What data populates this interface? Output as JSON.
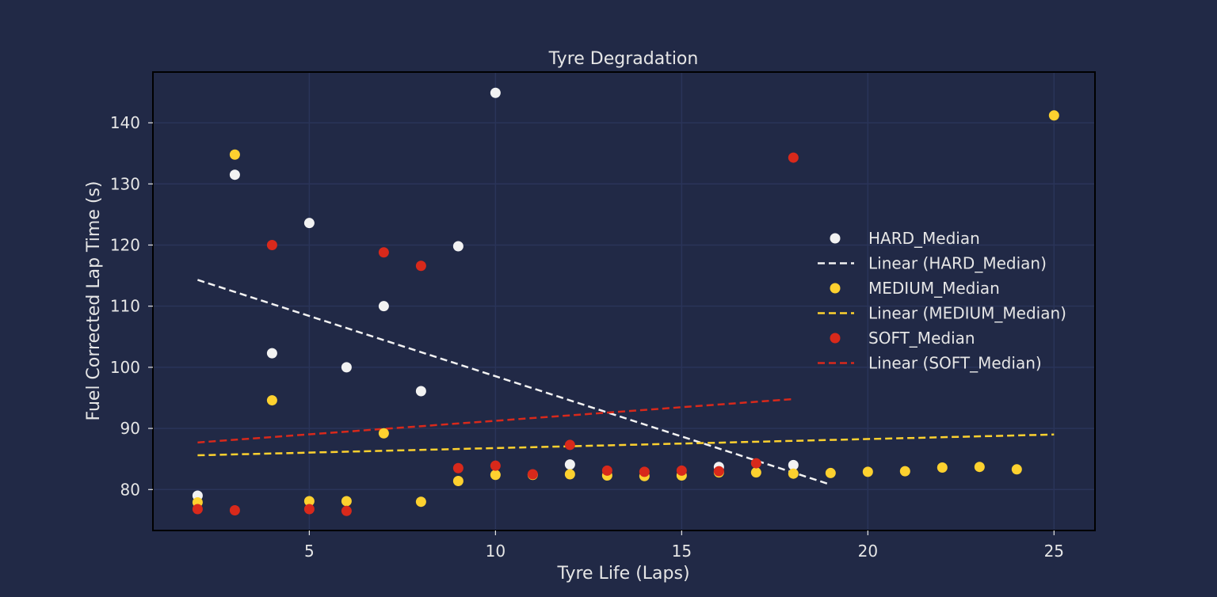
{
  "chart_data": {
    "type": "scatter",
    "title": "Tyre Degradation",
    "xlabel": "Tyre Life (Laps)",
    "ylabel": "Fuel Corrected Lap Time (s)",
    "xlim": [
      0.8,
      26.1
    ],
    "ylim": [
      73.3,
      148.3
    ],
    "xticks": [
      5,
      10,
      15,
      20,
      25
    ],
    "yticks": [
      80,
      90,
      100,
      110,
      120,
      130,
      140
    ],
    "grid": true,
    "legend_position": "center-right",
    "colors": {
      "background": "#212946",
      "grid": "#2A3459",
      "text": "#e6e6e6",
      "hard": "#F2F2F2",
      "medium": "#FDD12F",
      "soft": "#D8291B"
    },
    "series": [
      {
        "name": "HARD_Median",
        "kind": "scatter",
        "color": "#F2F2F2",
        "points": [
          [
            2,
            79
          ],
          [
            3,
            131.5
          ],
          [
            4,
            102.3
          ],
          [
            5,
            123.6
          ],
          [
            6,
            100
          ],
          [
            7,
            110
          ],
          [
            8,
            96.1
          ],
          [
            9,
            119.8
          ],
          [
            10,
            144.9
          ],
          [
            12,
            84.1
          ],
          [
            16,
            83.7
          ],
          [
            18,
            84
          ]
        ]
      },
      {
        "name": "Linear (HARD_Median)",
        "kind": "line",
        "color": "#F2F2F2",
        "points": [
          [
            2,
            114.3
          ],
          [
            19,
            80.8
          ]
        ]
      },
      {
        "name": "MEDIUM_Median",
        "kind": "scatter",
        "color": "#FDD12F",
        "points": [
          [
            2,
            77.9
          ],
          [
            3,
            134.8
          ],
          [
            4,
            94.6
          ],
          [
            5,
            78.1
          ],
          [
            6,
            78.1
          ],
          [
            7,
            89.2
          ],
          [
            8,
            78
          ],
          [
            9,
            81.4
          ],
          [
            10,
            82.4
          ],
          [
            11,
            82.4
          ],
          [
            12,
            82.5
          ],
          [
            13,
            82.3
          ],
          [
            14,
            82.2
          ],
          [
            15,
            82.3
          ],
          [
            16,
            82.8
          ],
          [
            17,
            82.8
          ],
          [
            18,
            82.6
          ],
          [
            19,
            82.7
          ],
          [
            20,
            82.9
          ],
          [
            21,
            83
          ],
          [
            22,
            83.6
          ],
          [
            23,
            83.7
          ],
          [
            24,
            83.3
          ],
          [
            25,
            141.2
          ]
        ]
      },
      {
        "name": "Linear (MEDIUM_Median)",
        "kind": "line",
        "color": "#FDD12F",
        "points": [
          [
            2,
            85.6
          ],
          [
            25,
            89
          ]
        ]
      },
      {
        "name": "SOFT_Median",
        "kind": "scatter",
        "color": "#D8291B",
        "points": [
          [
            2,
            76.8
          ],
          [
            3,
            76.6
          ],
          [
            4,
            120
          ],
          [
            5,
            76.8
          ],
          [
            6,
            76.5
          ],
          [
            7,
            118.8
          ],
          [
            8,
            116.6
          ],
          [
            9,
            83.5
          ],
          [
            10,
            83.9
          ],
          [
            11,
            82.5
          ],
          [
            12,
            87.3
          ],
          [
            13,
            83.1
          ],
          [
            14,
            82.9
          ],
          [
            15,
            83.1
          ],
          [
            16,
            83
          ],
          [
            17,
            84.3
          ],
          [
            18,
            134.3
          ]
        ]
      },
      {
        "name": "Linear (SOFT_Median)",
        "kind": "line",
        "color": "#D8291B",
        "points": [
          [
            2,
            87.7
          ],
          [
            18,
            94.8
          ]
        ]
      }
    ]
  }
}
